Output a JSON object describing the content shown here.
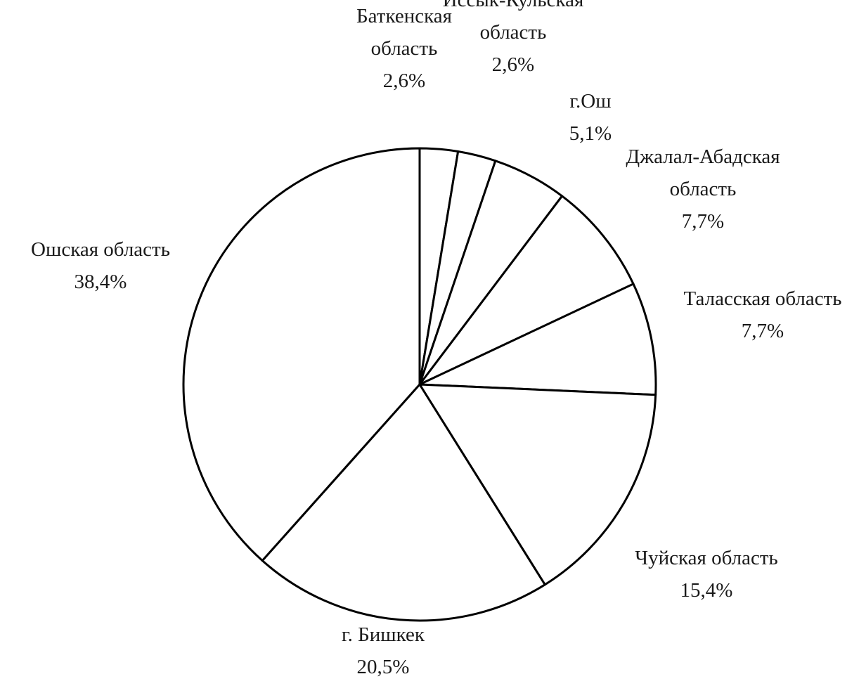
{
  "chart_data": {
    "type": "pie",
    "start_angle_deg": 90,
    "direction": "clockwise",
    "slices": [
      {
        "name": "Баткенская область",
        "value": 2.6,
        "label_lines": [
          "Баткенская",
          "область",
          "2,6%"
        ]
      },
      {
        "name": "Иссык-Кульская область",
        "value": 2.6,
        "label_lines": [
          "Иссык-Кульская",
          "область",
          "2,6%"
        ]
      },
      {
        "name": "г.Ош",
        "value": 5.1,
        "label_lines": [
          "г.Ош",
          "5,1%"
        ]
      },
      {
        "name": "Джалал-Абадская область",
        "value": 7.7,
        "label_lines": [
          "Джалал-Абадская",
          "область",
          "7,7%"
        ]
      },
      {
        "name": "Таласская область",
        "value": 7.7,
        "label_lines": [
          "Таласская область",
          "7,7%"
        ]
      },
      {
        "name": "Чуйская область",
        "value": 15.4,
        "label_lines": [
          "Чуйская область",
          "15,4%"
        ]
      },
      {
        "name": "г. Бишкек",
        "value": 20.5,
        "label_lines": [
          "г. Бишкек",
          "20,5%"
        ]
      },
      {
        "name": "Ошская область",
        "value": 38.4,
        "label_lines": [
          "Ошская область",
          "38,4%"
        ]
      }
    ],
    "colors": {
      "fill": "#ffffff",
      "stroke": "#000000",
      "text": "#1a1a1a"
    }
  }
}
